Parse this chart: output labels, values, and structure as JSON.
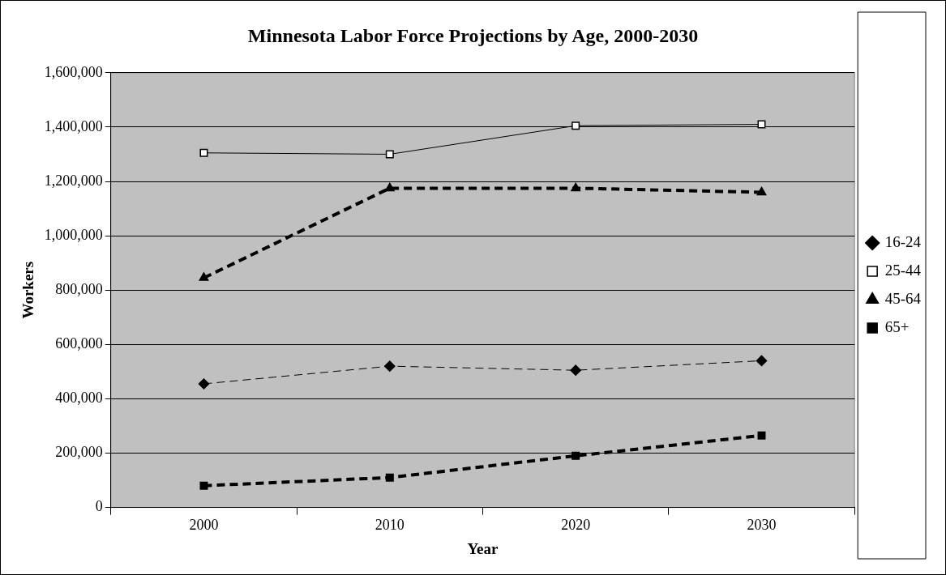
{
  "chart_data": {
    "type": "line",
    "title": "Minnesota Labor Force Projections by Age, 2000-2030",
    "xlabel": "Year",
    "ylabel": "Workers",
    "categories": [
      "2000",
      "2010",
      "2020",
      "2030"
    ],
    "series": [
      {
        "name": "16-24",
        "color": "#000000",
        "values": [
          455000,
          520000,
          505000,
          540000
        ],
        "line_style": "dashed",
        "marker": "diamond"
      },
      {
        "name": "25-44",
        "color": "#000000",
        "values": [
          1305000,
          1300000,
          1405000,
          1410000
        ],
        "line_style": "solid",
        "marker": "square"
      },
      {
        "name": "45-64",
        "color": "#000000",
        "values": [
          845000,
          1175000,
          1175000,
          1160000
        ],
        "line_style": "dashed",
        "marker": "triangle"
      },
      {
        "name": "65+",
        "color": "#000000",
        "values": [
          80000,
          110000,
          190000,
          265000
        ],
        "line_style": "dashed",
        "marker": "square"
      }
    ],
    "ylim": [
      0,
      1600000
    ],
    "yticks": [
      {
        "value": 0,
        "label": "0"
      },
      {
        "value": 200000,
        "label": "200,000"
      },
      {
        "value": 400000,
        "label": "400,000"
      },
      {
        "value": 600000,
        "label": "600,000"
      },
      {
        "value": 800000,
        "label": "800,000"
      },
      {
        "value": 1000000,
        "label": "1,000,000"
      },
      {
        "value": 1200000,
        "label": "1,200,000"
      },
      {
        "value": 1400000,
        "label": "1,400,000"
      },
      {
        "value": 1600000,
        "label": "1,600,000"
      }
    ],
    "grid": "y",
    "legend": "right"
  }
}
